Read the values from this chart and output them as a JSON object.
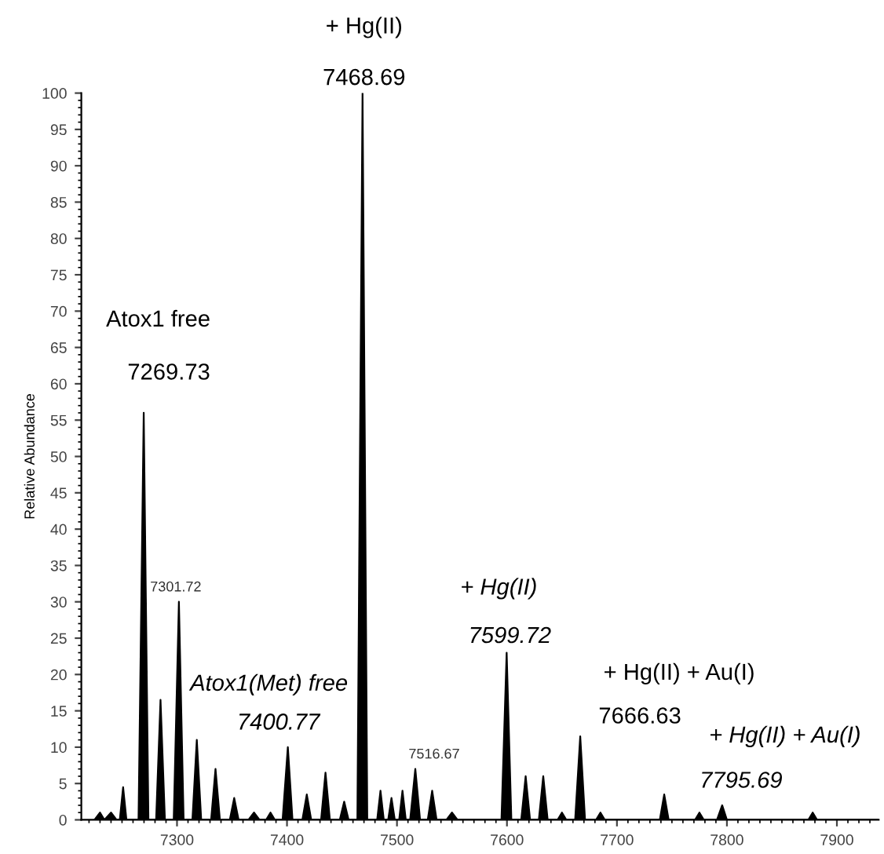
{
  "chart_data": {
    "type": "area",
    "ylabel": "Relative Abundance",
    "series": [
      {
        "color": "#000000",
        "x": [
          7225,
          7230,
          7234,
          7240,
          7245,
          7248,
          7251,
          7254,
          7265,
          7269.73,
          7274,
          7281,
          7285,
          7289,
          7297,
          7301.72,
          7306,
          7314,
          7318,
          7322,
          7331,
          7335,
          7339,
          7348,
          7352,
          7356,
          7365,
          7370,
          7375,
          7381,
          7385,
          7389,
          7396,
          7400.77,
          7405,
          7414,
          7418,
          7422,
          7431,
          7435,
          7439,
          7448,
          7452,
          7456,
          7464,
          7468.69,
          7473,
          7482,
          7485,
          7488,
          7492,
          7495,
          7498,
          7502,
          7505,
          7508,
          7512,
          7516.67,
          7521,
          7528,
          7532,
          7536,
          7545,
          7550,
          7555,
          7595,
          7599.72,
          7604,
          7613,
          7617,
          7621,
          7629,
          7633,
          7637,
          7646,
          7650,
          7654,
          7662,
          7666.63,
          7671,
          7681,
          7685,
          7689,
          7739,
          7743,
          7747,
          7771,
          7775,
          7779,
          7791,
          7795.69,
          7800,
          7874,
          7878,
          7882,
          7938
        ],
        "values": [
          0,
          1,
          0,
          1,
          0,
          0,
          4.5,
          0,
          0,
          56,
          0,
          0,
          16.5,
          0,
          0,
          30,
          0,
          0,
          11,
          0,
          0,
          7,
          0,
          0,
          3,
          0,
          0,
          1,
          0,
          0,
          1,
          0,
          0,
          10,
          0,
          0,
          3.5,
          0,
          0,
          6.5,
          0,
          0,
          2.5,
          0,
          0,
          100,
          0,
          0,
          4,
          0,
          0,
          3,
          0,
          0,
          4,
          0,
          0,
          7,
          0,
          0,
          4,
          0,
          0,
          1,
          0,
          0,
          23,
          0,
          0,
          6,
          0,
          0,
          6,
          0,
          0,
          1,
          0,
          0,
          11.5,
          0,
          0,
          1,
          0,
          0,
          3.5,
          0,
          0,
          1,
          0,
          0,
          2,
          0,
          0,
          1,
          0,
          0
        ]
      }
    ],
    "xlim": [
      7213,
      7938
    ],
    "xticks": [
      7300,
      7400,
      7500,
      7600,
      7700,
      7800,
      7900
    ],
    "ylim": [
      0,
      100
    ],
    "yticks": [
      0,
      5,
      10,
      15,
      20,
      25,
      30,
      35,
      40,
      45,
      50,
      55,
      60,
      65,
      70,
      75,
      80,
      85,
      90,
      95,
      100
    ],
    "grid": false,
    "legend": false,
    "annotations": [
      "Atox1 free",
      {
        "text": "7269.73",
        "x": 7269.73,
        "y": 56
      },
      "+ Hg(II)",
      {
        "text": "7468.69",
        "x": 7468.69,
        "y": 100
      },
      {
        "text": "7301.72",
        "x": 7301.72,
        "y": 30
      },
      "Atox1(Met) free",
      {
        "text": "7400.77",
        "x": 7400.77,
        "y": 10
      },
      {
        "text": "7516.67",
        "x": 7516.67,
        "y": 7
      },
      "+ Hg(II)",
      {
        "text": "7599.72",
        "x": 7599.72,
        "y": 23
      },
      "+ Hg(II) + Au(I)",
      {
        "text": "7666.63",
        "x": 7666.63,
        "y": 11.5
      },
      "+ Hg(II) + Au(I)",
      {
        "text": "7795.69",
        "x": 7795.69,
        "y": 2
      }
    ]
  }
}
